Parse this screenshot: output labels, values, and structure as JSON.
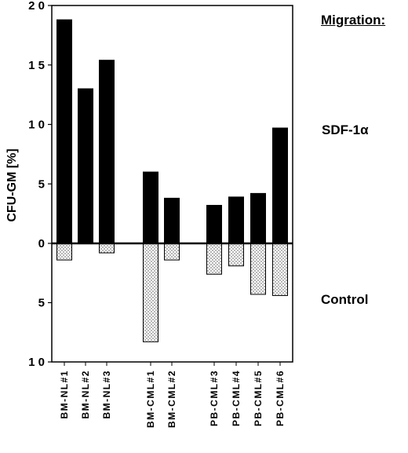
{
  "chart_data": {
    "type": "bar",
    "ylabel": "CFU-GM [%]",
    "categories": [
      "BM-NL#1",
      "BM-NL#2",
      "BM-NL#3",
      "BM-CML#1",
      "BM-CML#2",
      "PB-CML#3",
      "PB-CML#4",
      "PB-CML#5",
      "PB-CML#6"
    ],
    "series": [
      {
        "name": "SDF-1α",
        "values": [
          18.8,
          13.0,
          15.4,
          6.0,
          3.8,
          3.2,
          3.9,
          4.2,
          9.7
        ],
        "color": "#000000",
        "direction": "up"
      },
      {
        "name": "Control",
        "values": [
          1.4,
          0,
          0.8,
          8.3,
          1.4,
          2.6,
          1.9,
          4.3,
          4.4
        ],
        "color": "#ffffff",
        "pattern": "dotted",
        "direction": "down"
      }
    ],
    "ylim_up": [
      0,
      20
    ],
    "ylim_down": [
      0,
      10
    ],
    "ytick_labels": [
      "2 0",
      "1 5",
      "1 0",
      "5",
      "0",
      "5",
      "1 0"
    ],
    "grid": false
  },
  "legend": {
    "heading": "Migration:",
    "upper_label": "SDF-1α",
    "lower_label": "Control"
  }
}
